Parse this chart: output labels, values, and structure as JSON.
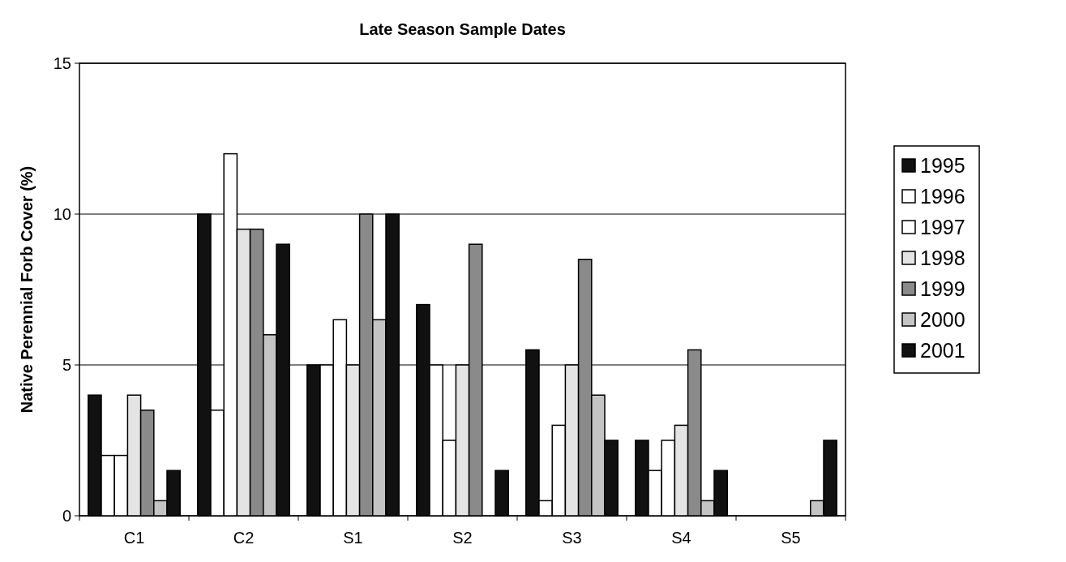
{
  "chart_data": {
    "type": "bar",
    "title": "Late Season Sample Dates",
    "ylabel": "Native Perennial Forb Cover (%)",
    "categories": [
      "C1",
      "C2",
      "S1",
      "S2",
      "S3",
      "S4",
      "S5"
    ],
    "series": [
      {
        "name": "1995",
        "color": "#111111",
        "values": [
          4,
          10,
          5,
          7,
          5.5,
          2.5,
          0
        ]
      },
      {
        "name": "1996",
        "color": "#ffffff",
        "values": [
          2,
          3.5,
          5,
          5,
          0.5,
          1.5,
          0
        ]
      },
      {
        "name": "1997",
        "color": "#ffffff",
        "values": [
          2,
          12,
          6.5,
          2.5,
          3,
          2.5,
          0
        ]
      },
      {
        "name": "1998",
        "color": "#e4e4e4",
        "values": [
          4,
          9.5,
          5,
          5,
          5,
          3,
          0
        ]
      },
      {
        "name": "1999",
        "color": "#8a8a8a",
        "values": [
          3.5,
          9.5,
          10,
          9,
          8.5,
          5.5,
          0
        ]
      },
      {
        "name": "2000",
        "color": "#c4c4c4",
        "values": [
          0.5,
          6,
          6.5,
          0,
          4,
          0.5,
          0.5
        ]
      },
      {
        "name": "2001",
        "color": "#111111",
        "values": [
          1.5,
          9,
          10,
          1.5,
          2.5,
          1.5,
          2.5
        ]
      }
    ],
    "ylim": [
      0,
      15
    ],
    "yticks": [
      0,
      5,
      10,
      15
    ],
    "grid": "y",
    "legend": "right"
  }
}
